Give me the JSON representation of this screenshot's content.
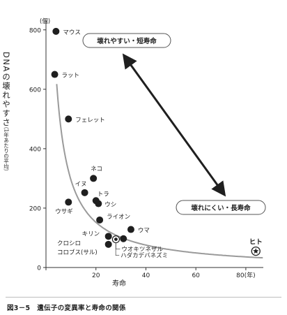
{
  "chart_data": {
    "type": "scatter",
    "ylabel": "DNAの壊れやすさ",
    "ylabel_unit": "（1年あたりの平均）",
    "y_unit": "(個)",
    "xlabel": "寿命",
    "x_unit_tick": "80(年)",
    "xlim": [
      0,
      87
    ],
    "ylim": [
      0,
      830
    ],
    "xticks": [
      0,
      20,
      40,
      60,
      80
    ],
    "xtick_labels": [
      "0",
      "20",
      "40",
      "60",
      "80(年)"
    ],
    "yticks": [
      0,
      200,
      400,
      600,
      800
    ],
    "ytick_labels": [
      "0",
      "200",
      "400",
      "600",
      "800"
    ],
    "grid": false,
    "legend": "none",
    "series": [
      {
        "points": [
          {
            "label": "マウス",
            "x": 4,
            "y": 795
          },
          {
            "label": "ラット",
            "x": 3.5,
            "y": 650
          },
          {
            "label": "フェレット",
            "x": 9,
            "y": 500
          },
          {
            "label": "ネコ",
            "x": 19,
            "y": 300
          },
          {
            "label": "イヌ",
            "x": 15.5,
            "y": 252
          },
          {
            "label": "トラ",
            "x": 20,
            "y": 225
          },
          {
            "label": "ウシ",
            "x": 21,
            "y": 215
          },
          {
            "label": "ウサギ",
            "x": 9,
            "y": 220
          },
          {
            "label": "ライオン",
            "x": 21.5,
            "y": 160
          },
          {
            "label": "ウマ",
            "x": 34,
            "y": 128
          },
          {
            "label": "キリン",
            "x": 25,
            "y": 105
          },
          {
            "label": "クロシロコロブス(サル)",
            "x": 25,
            "y": 78
          },
          {
            "label": "ウオキツネザル",
            "x": 28,
            "y": 95
          },
          {
            "label": "ハダカデバネズミ",
            "x": 31,
            "y": 97
          },
          {
            "label": "ヒト",
            "x": 84,
            "y": 55
          }
        ]
      }
    ],
    "trend_curve": "hyperbolic decreasing fit",
    "annotations": {
      "top": "壊れやすい・短寿命",
      "bottom": "壊れにくい・長寿命"
    },
    "colors": {
      "point": "#1f1f1f",
      "curve": "#9a9a9a",
      "axis": "#333333",
      "arrow": "#1f1f1f"
    }
  },
  "caption": "図3－5　遺伝子の変異率と寿命の関係"
}
